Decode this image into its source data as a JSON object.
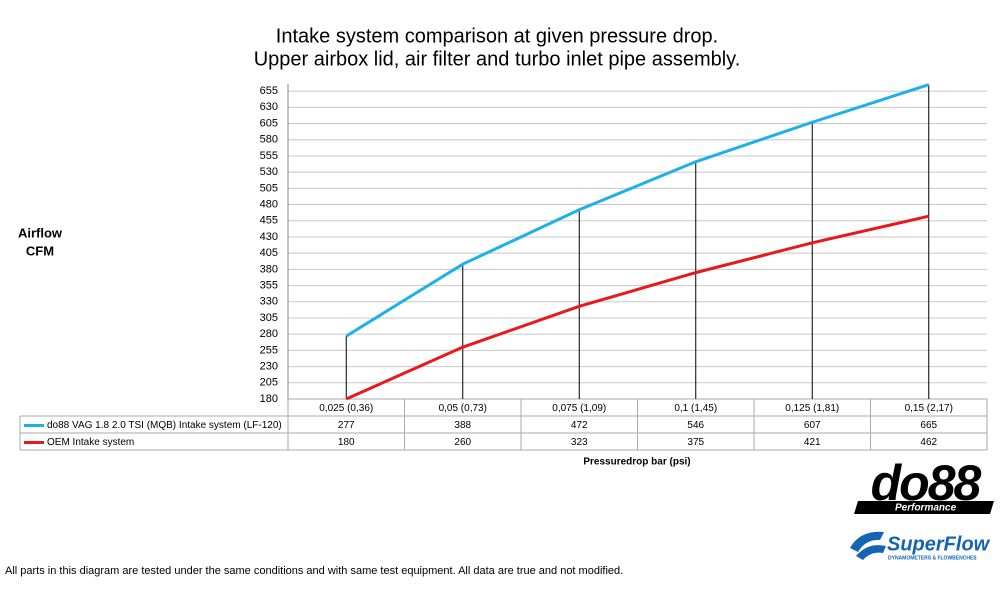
{
  "chart_data": {
    "type": "line",
    "title": "Intake system comparison at given pressure drop.",
    "subtitle": "Upper airbox lid, air filter and turbo inlet pipe assembly.",
    "ylabel": [
      "Airflow",
      "CFM"
    ],
    "xlabel": "Pressuredrop bar (psi)",
    "categories": [
      "0,025 (0,36)",
      "0,05 (0,73)",
      "0,075 (1,09)",
      "0,1 (1,45)",
      "0,125 (1,81)",
      "0,15 (2,17)"
    ],
    "series": [
      {
        "name": "do88 VAG 1.8 2.0 TSI (MQB) Intake system (LF-120)",
        "color": "#1eb1e8",
        "values": [
          277,
          388,
          472,
          546,
          607,
          665
        ]
      },
      {
        "name": "OEM Intake system",
        "color": "#e8191c",
        "values": [
          180,
          260,
          323,
          375,
          421,
          462
        ]
      }
    ],
    "ylim": [
      180,
      666
    ],
    "yticks": [
      180,
      205,
      230,
      255,
      280,
      305,
      330,
      355,
      380,
      405,
      430,
      455,
      480,
      505,
      530,
      555,
      580,
      605,
      630,
      655
    ],
    "grid": true,
    "note": "All parts in this diagram are tested under the same conditions and with same test equipment. All data are true and not modified."
  },
  "logos": {
    "do88": "do88",
    "do88_sub": "Performance",
    "superflow": "SuperFlow",
    "superflow_sub": "DYNAMOMETERS & FLOWBENCHES"
  }
}
